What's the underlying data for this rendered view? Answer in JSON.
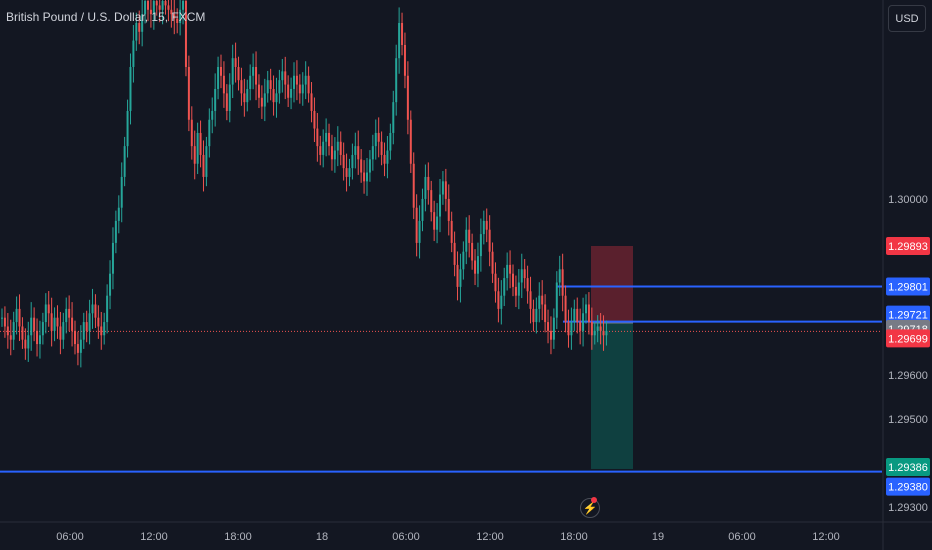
{
  "header": {
    "title": "British Pound / U.S. Dollar, 15, FXCM",
    "currency_label": "USD"
  },
  "colors": {
    "background": "#131722",
    "grid": "#1e222d",
    "up": "#26a69a",
    "down": "#ef5350",
    "line": "#2962ff",
    "stop_zone": "#f23645",
    "target_zone": "#089981",
    "price_badge": "#f23645",
    "gray_badge": "#787b86"
  },
  "chart_data": {
    "type": "candlestick",
    "title": "British Pound / U.S. Dollar, 15, FXCM",
    "symbol": "GBPUSD",
    "timeframe": "15",
    "source": "FXCM",
    "y_range": [
      1.2927,
      1.3045
    ],
    "x_tick_labels": [
      "06:00",
      "12:00",
      "18:00",
      "18",
      "06:00",
      "12:00",
      "18:00",
      "19",
      "06:00",
      "12:00"
    ],
    "y_tick_labels": [
      "1.30000",
      "1.29600",
      "1.29500",
      "1.29300"
    ],
    "price_labels": [
      {
        "label": "1.29893",
        "value": 1.29893,
        "type": "stop"
      },
      {
        "label": "1.29801",
        "value": 1.29801,
        "type": "line"
      },
      {
        "label": "1.29721",
        "value": 1.29721,
        "type": "line"
      },
      {
        "label": "1.29718",
        "value": 1.29718,
        "type": "entry"
      },
      {
        "label": "1.29699",
        "value": 1.29699,
        "type": "last"
      },
      {
        "label": "1.29386",
        "value": 1.29386,
        "type": "target"
      },
      {
        "label": "1.29380",
        "value": 1.2938,
        "type": "line"
      }
    ],
    "horizontal_lines": [
      1.29801,
      1.29721,
      1.2938
    ],
    "last_price": 1.29699,
    "position": {
      "side": "short",
      "entry": 1.29718,
      "stop": 1.29893,
      "target": 1.29386
    },
    "candles_close": [
      1.2973,
      1.2971,
      1.2969,
      1.2968,
      1.2972,
      1.2975,
      1.2971,
      1.2968,
      1.2966,
      1.2969,
      1.2973,
      1.297,
      1.2967,
      1.2969,
      1.2972,
      1.2976,
      1.2974,
      1.297,
      1.2973,
      1.2971,
      1.2968,
      1.2972,
      1.2975,
      1.2973,
      1.297,
      1.2967,
      1.2965,
      1.2968,
      1.2972,
      1.297,
      1.2974,
      1.2976,
      1.2973,
      1.2971,
      1.2969,
      1.2972,
      1.2978,
      1.2983,
      1.299,
      1.2995,
      1.2998,
      1.3005,
      1.3012,
      1.302,
      1.303,
      1.3036,
      1.304,
      1.3038,
      1.3042,
      1.3045,
      1.3043,
      1.3042,
      1.3045,
      1.3044,
      1.3043,
      1.3045,
      1.3044,
      1.3043,
      1.3042,
      1.3041,
      1.304,
      1.3043,
      1.3045,
      1.303,
      1.3018,
      1.3012,
      1.3008,
      1.3015,
      1.301,
      1.3005,
      1.3012,
      1.3018,
      1.302,
      1.3025,
      1.303,
      1.3028,
      1.3024,
      1.302,
      1.3026,
      1.3032,
      1.303,
      1.3027,
      1.3024,
      1.3022,
      1.3025,
      1.3028,
      1.303,
      1.3026,
      1.3023,
      1.3021,
      1.3024,
      1.3027,
      1.3025,
      1.3022,
      1.3024,
      1.3027,
      1.3029,
      1.3026,
      1.3023,
      1.3025,
      1.3028,
      1.3026,
      1.3024,
      1.3026,
      1.3028,
      1.3024,
      1.302,
      1.3016,
      1.3012,
      1.301,
      1.3013,
      1.3015,
      1.3012,
      1.3009,
      1.3011,
      1.3013,
      1.301,
      1.3007,
      1.3005,
      1.3007,
      1.301,
      1.3012,
      1.3009,
      1.3006,
      1.3004,
      1.3006,
      1.3009,
      1.3012,
      1.3015,
      1.3013,
      1.301,
      1.3008,
      1.3011,
      1.3015,
      1.3022,
      1.3032,
      1.304,
      1.3035,
      1.3028,
      1.3018,
      1.3008,
      1.2998,
      1.299,
      1.2995,
      1.3,
      1.3005,
      1.3002,
      1.2997,
      1.2993,
      1.2996,
      1.3001,
      1.3004,
      1.3,
      1.2995,
      1.299,
      1.2985,
      1.298,
      1.2984,
      1.2988,
      1.2993,
      1.299,
      1.2986,
      1.2983,
      1.2987,
      1.2992,
      1.2995,
      1.2993,
      1.2988,
      1.2983,
      1.2979,
      1.2975,
      1.2978,
      1.2982,
      1.2985,
      1.2983,
      1.298,
      1.2978,
      1.2981,
      1.2984,
      1.2982,
      1.2979,
      1.2975,
      1.2972,
      1.2975,
      1.2978,
      1.2976,
      1.2972,
      1.297,
      1.2968,
      1.2973,
      1.2981,
      1.2984,
      1.2978,
      1.2972,
      1.2969,
      1.2972,
      1.2975,
      1.2972,
      1.297,
      1.2974,
      1.2976,
      1.2972,
      1.2969,
      1.297,
      1.2971,
      1.297,
      1.2969,
      1.297
    ]
  }
}
